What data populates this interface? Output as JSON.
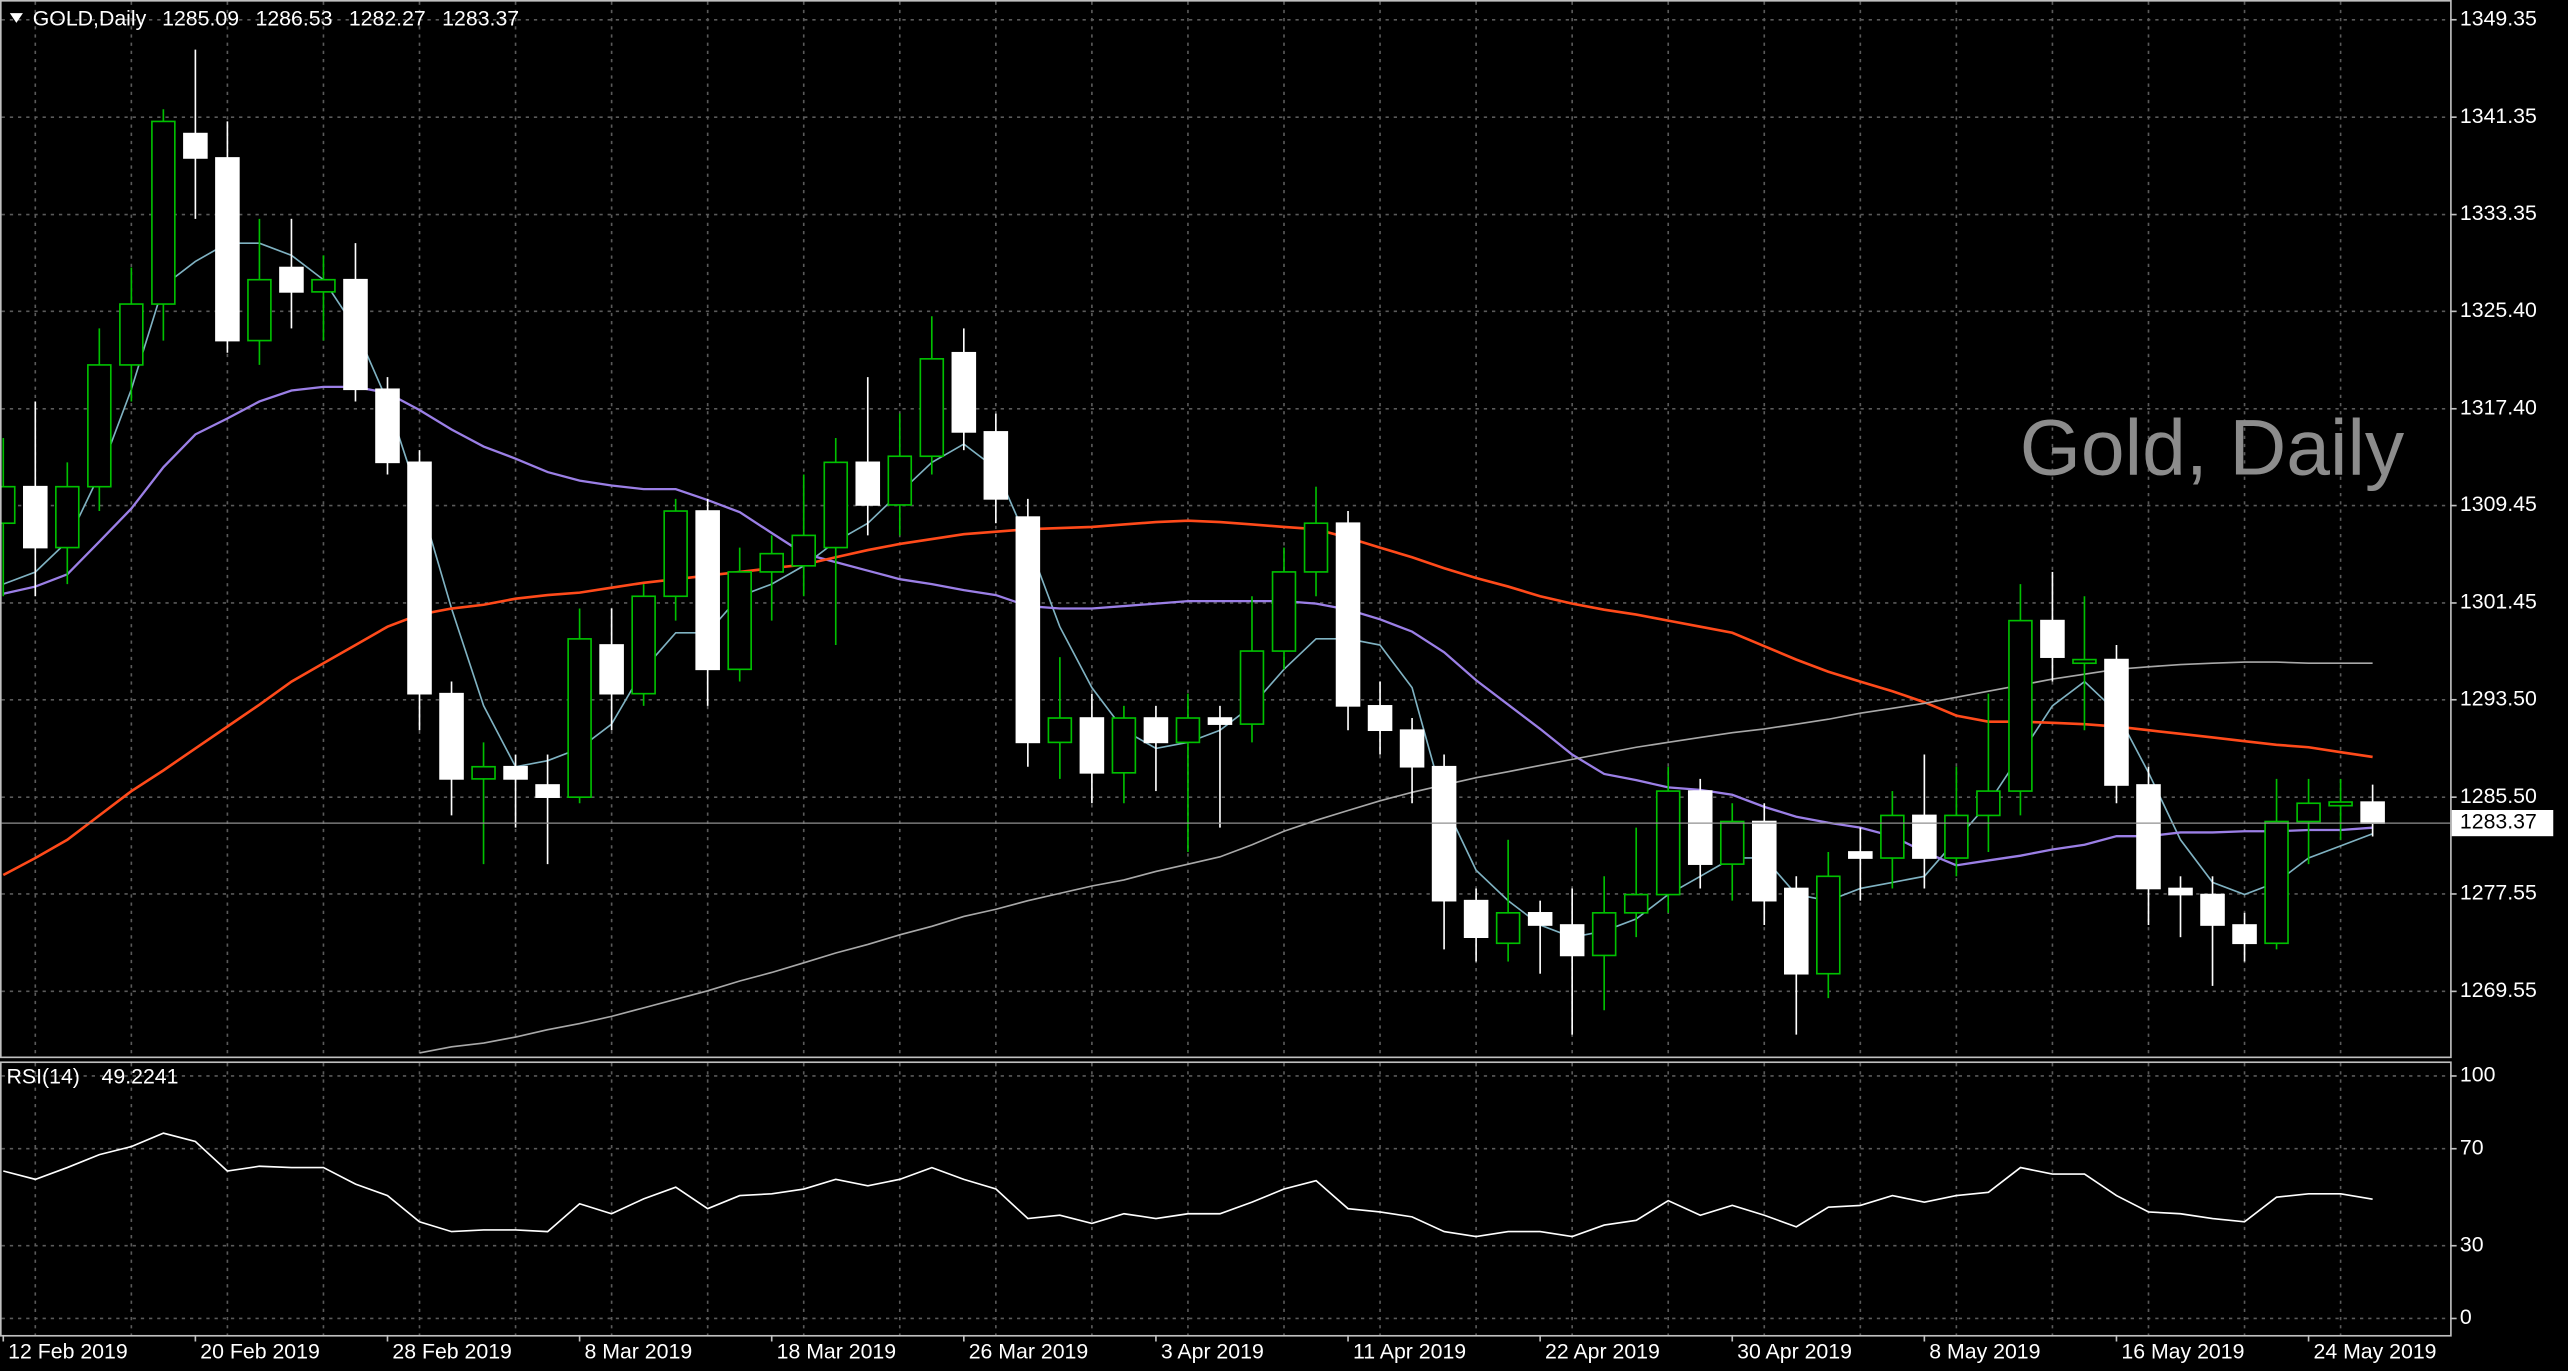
{
  "chart_data": [
    {
      "type": "candlestick",
      "title": "GOLD,Daily",
      "watermark": "Gold, Daily",
      "categories": [
        "12 Feb 2019",
        null,
        null,
        null,
        null,
        null,
        "20 Feb 2019",
        null,
        null,
        null,
        null,
        null,
        "28 Feb 2019",
        null,
        null,
        null,
        null,
        null,
        "8 Mar 2019",
        null,
        null,
        null,
        null,
        null,
        "18 Mar 2019",
        null,
        null,
        null,
        null,
        null,
        "26 Mar 2019",
        null,
        null,
        null,
        null,
        null,
        "3 Apr 2019",
        null,
        null,
        null,
        null,
        null,
        "11 Apr 2019",
        null,
        null,
        null,
        null,
        null,
        "22 Apr 2019",
        null,
        null,
        null,
        null,
        null,
        "30 Apr 2019",
        null,
        null,
        null,
        null,
        null,
        "8 May 2019",
        null,
        null,
        null,
        null,
        null,
        "16 May 2019",
        null,
        null,
        null,
        null,
        null,
        "24 May 2019",
        null,
        null
      ],
      "open": [
        1308,
        1311,
        1306,
        1311,
        1321,
        1326,
        1340,
        1338,
        1323,
        1329,
        1327,
        1328,
        1319,
        1313,
        1294,
        1287,
        1288,
        1286.5,
        1285.5,
        1298,
        1294,
        1302,
        1309,
        1296,
        1304,
        1304.5,
        1306,
        1313,
        1309.5,
        1313.5,
        1322,
        1315.5,
        1308.5,
        1290,
        1292,
        1287.5,
        1292,
        1290,
        1292,
        1291.5,
        1297.5,
        1304,
        1308,
        1293,
        1291,
        1288,
        1277,
        1273.5,
        1276,
        1275,
        1272.5,
        1276,
        1277.5,
        1286,
        1280,
        1283.5,
        1278,
        1271,
        1281,
        1280.5,
        1284,
        1280.5,
        1284,
        1286,
        1300,
        1296.5,
        1296.8,
        1286.5,
        1278,
        1277.5,
        1275,
        1273.5,
        1283.5,
        1284.8,
        1285.09
      ],
      "high": [
        1315,
        1318,
        1313,
        1324,
        1329,
        1342,
        1346.9,
        1341,
        1333,
        1333,
        1330,
        1331,
        1320,
        1314,
        1295,
        1290,
        1289,
        1289,
        1301,
        1301,
        1303,
        1310,
        1310,
        1306,
        1307,
        1312,
        1315,
        1320,
        1317,
        1325,
        1324,
        1317,
        1310,
        1297,
        1294,
        1293,
        1293,
        1294,
        1293,
        1302,
        1306,
        1311,
        1309,
        1295,
        1292,
        1289,
        1278,
        1282,
        1277,
        1278,
        1279,
        1283,
        1288,
        1287,
        1285,
        1285,
        1279,
        1281,
        1283,
        1286,
        1289,
        1288,
        1294,
        1303,
        1304,
        1302,
        1298,
        1288,
        1279,
        1279,
        1276,
        1287,
        1287,
        1287,
        1286.53
      ],
      "low": [
        1302,
        1302,
        1303,
        1309,
        1318,
        1323,
        1333,
        1322,
        1321,
        1324,
        1323,
        1318,
        1312,
        1291,
        1284,
        1280,
        1283,
        1280,
        1285,
        1291,
        1293,
        1300,
        1293,
        1295,
        1300,
        1302,
        1298,
        1307,
        1307,
        1312,
        1314,
        1308,
        1288,
        1287,
        1285,
        1285,
        1286,
        1281,
        1283,
        1290,
        1296,
        1302,
        1291,
        1289,
        1285,
        1273,
        1272,
        1272,
        1271,
        1266,
        1268,
        1274,
        1276,
        1278,
        1277,
        1275,
        1266,
        1269,
        1277,
        1278,
        1278,
        1279,
        1281,
        1284,
        1295,
        1291,
        1285,
        1275,
        1274,
        1270,
        1272,
        1273,
        1280,
        1282,
        1282.27
      ],
      "close": [
        1311,
        1306,
        1311,
        1321,
        1326,
        1341,
        1338,
        1323,
        1328,
        1327,
        1328,
        1319,
        1313,
        1294,
        1287,
        1288,
        1287,
        1285.5,
        1298.5,
        1294,
        1302,
        1309,
        1296,
        1304,
        1305.5,
        1307,
        1313,
        1309.5,
        1313.5,
        1321.5,
        1315.5,
        1310,
        1290,
        1292,
        1287.5,
        1292,
        1290,
        1292,
        1291.5,
        1297.5,
        1304,
        1308,
        1293,
        1291,
        1288,
        1277,
        1274,
        1276,
        1275,
        1272.5,
        1276,
        1277.5,
        1286,
        1280,
        1283.5,
        1277,
        1271,
        1279,
        1280.5,
        1284,
        1280.5,
        1284,
        1286,
        1300,
        1297,
        1296.8,
        1286.5,
        1278,
        1277.5,
        1275,
        1273.5,
        1283.5,
        1285,
        1285.1,
        1283.37
      ],
      "bull_color": "#00c000",
      "bear_color": "#ffffff",
      "overlays": [
        {
          "color": "#7fb2c2",
          "values": [
            1303,
            1304,
            1306.5,
            1312,
            1319,
            1327.5,
            1329.5,
            1331,
            1331,
            1330,
            1328,
            1324,
            1318,
            1310,
            1301,
            1293,
            1288,
            1288.5,
            1289.5,
            1291.5,
            1296,
            1299,
            1299,
            1302,
            1303,
            1304.5,
            1306.5,
            1308,
            1310.5,
            1313,
            1314.5,
            1312.5,
            1306.5,
            1299.5,
            1294.5,
            1291,
            1289.5,
            1290,
            1291,
            1293,
            1296,
            1298.5,
            1298.5,
            1298,
            1294.5,
            1285,
            1279.5,
            1277,
            1275,
            1274,
            1274.5,
            1275.5,
            1277.5,
            1279,
            1280.5,
            1280.5,
            1277.5,
            1277,
            1278,
            1278.5,
            1279,
            1282,
            1285,
            1289,
            1293,
            1295,
            1292.5,
            1287.5,
            1282,
            1278.5,
            1277.5,
            1278.5,
            1280.5,
            1281.5,
            1282.5
          ]
        },
        {
          "color": "#9b7fe6",
          "values": [
            1302.2,
            1302.8,
            1303.8,
            1306.5,
            1309.2,
            1312.6,
            1315.3,
            1316.6,
            1318.0,
            1318.9,
            1319.2,
            1319.2,
            1318.7,
            1317.3,
            1315.7,
            1314.3,
            1313.3,
            1312.2,
            1311.5,
            1311.1,
            1310.8,
            1310.8,
            1309.9,
            1308.9,
            1307.2,
            1305.5,
            1304.8,
            1304.1,
            1303.4,
            1303.0,
            1302.5,
            1302.1,
            1301.2,
            1301.0,
            1301.0,
            1301.2,
            1301.4,
            1301.6,
            1301.6,
            1301.6,
            1301.6,
            1301.4,
            1300.9,
            1300.1,
            1299.1,
            1297.4,
            1295.1,
            1293.1,
            1291.1,
            1289.0,
            1287.4,
            1286.9,
            1286.3,
            1286.1,
            1285.7,
            1284.7,
            1283.9,
            1283.4,
            1283.0,
            1282.3,
            1281.0,
            1279.9,
            1280.3,
            1280.7,
            1281.2,
            1281.6,
            1282.3,
            1282.3,
            1282.6,
            1282.6,
            1282.7,
            1282.7,
            1282.8,
            1282.8,
            1283.0
          ]
        },
        {
          "color": "#ff4a1a",
          "values": [
            1279.1,
            1280.5,
            1282.0,
            1284.0,
            1286.0,
            1287.7,
            1289.5,
            1291.3,
            1293.1,
            1295.0,
            1296.5,
            1298.0,
            1299.5,
            1300.5,
            1301.0,
            1301.3,
            1301.8,
            1302.1,
            1302.3,
            1302.7,
            1303.1,
            1303.4,
            1303.7,
            1304.0,
            1304.3,
            1304.6,
            1305.2,
            1305.8,
            1306.3,
            1306.7,
            1307.1,
            1307.3,
            1307.5,
            1307.6,
            1307.7,
            1307.9,
            1308.1,
            1308.2,
            1308.1,
            1307.9,
            1307.7,
            1307.5,
            1306.8,
            1306.0,
            1305.2,
            1304.3,
            1303.5,
            1302.8,
            1302.0,
            1301.4,
            1300.9,
            1300.5,
            1300.0,
            1299.5,
            1299.0,
            1297.9,
            1296.8,
            1295.8,
            1295.0,
            1294.2,
            1293.3,
            1292.2,
            1291.7,
            1291.7,
            1291.6,
            1291.5,
            1291.3,
            1291.0,
            1290.7,
            1290.4,
            1290.1,
            1289.8,
            1289.6,
            1289.2,
            1288.8
          ]
        },
        {
          "color": "#a8a8a8",
          "values": [
            null,
            null,
            null,
            null,
            null,
            null,
            null,
            null,
            null,
            null,
            null,
            null,
            null,
            1264.5,
            1265.0,
            1265.3,
            1265.8,
            1266.4,
            1266.9,
            1267.5,
            1268.2,
            1268.9,
            1269.6,
            1270.4,
            1271.1,
            1271.9,
            1272.7,
            1273.4,
            1274.2,
            1274.9,
            1275.7,
            1276.3,
            1277.0,
            1277.6,
            1278.2,
            1278.7,
            1279.4,
            1280.0,
            1280.6,
            1281.6,
            1282.7,
            1283.6,
            1284.4,
            1285.2,
            1285.9,
            1286.5,
            1287.1,
            1287.6,
            1288.1,
            1288.6,
            1289.1,
            1289.6,
            1290.0,
            1290.4,
            1290.8,
            1291.1,
            1291.5,
            1291.9,
            1292.4,
            1292.8,
            1293.2,
            1293.7,
            1294.2,
            1294.7,
            1295.2,
            1295.6,
            1296.0,
            1296.2,
            1296.4,
            1296.5,
            1296.6,
            1296.6,
            1296.5,
            1296.5,
            1296.5
          ]
        }
      ],
      "ylim": [
        1264.2,
        1350.3
      ],
      "yticks": [
        1349.35,
        1341.35,
        1333.35,
        {
          "value": 1325.4,
          "label": "1325.40"
        },
        {
          "value": 1317.4,
          "label": "1317.40"
        },
        1309.45,
        1301.45,
        {
          "value": 1293.5,
          "label": "1293.50"
        },
        {
          "value": 1285.5,
          "label": "1285.50"
        },
        1277.55,
        1269.55
      ],
      "grid": true
    },
    {
      "type": "line",
      "title": "RSI(14)",
      "color": "#ffffff",
      "values": [
        60.8,
        57.4,
        62.2,
        67.6,
        70.9,
        76.4,
        73.0,
        60.8,
        62.8,
        62.2,
        62.2,
        55.4,
        50.7,
        39.9,
        35.8,
        36.5,
        36.5,
        35.8,
        47.3,
        43.2,
        49.3,
        54.1,
        45.3,
        50.7,
        51.4,
        53.4,
        57.4,
        54.7,
        57.4,
        62.2,
        57.4,
        53.4,
        41.2,
        42.6,
        39.2,
        43.2,
        41.2,
        43.2,
        43.2,
        48.0,
        53.4,
        56.8,
        45.3,
        43.9,
        41.9,
        35.8,
        33.8,
        35.8,
        35.8,
        33.8,
        38.5,
        40.5,
        48.6,
        42.6,
        46.6,
        42.6,
        37.8,
        45.9,
        46.6,
        50.7,
        48.0,
        50.7,
        52.0,
        62.2,
        59.5,
        59.5,
        50.7,
        43.9,
        43.2,
        41.2,
        39.9,
        50.0,
        51.4,
        51.4,
        49.2241
      ],
      "ylim": [
        -6.8,
        106
      ],
      "yticks": [
        100,
        70,
        30,
        0
      ],
      "grid": true
    }
  ]
}
